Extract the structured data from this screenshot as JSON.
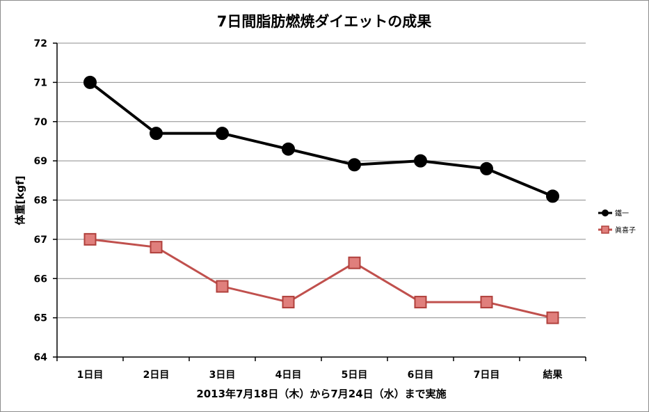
{
  "chart_data": {
    "type": "line",
    "title": "7日間脂肪燃焼ダイエットの成果",
    "xlabel": "2013年7月18日（木）から7月24日（水）まで実施",
    "ylabel": "体重[kgf]",
    "categories": [
      "1日目",
      "2日目",
      "3日目",
      "4日目",
      "5日目",
      "6日目",
      "7日目",
      "結果"
    ],
    "ylim": [
      64,
      72
    ],
    "yticks": [
      64,
      65,
      66,
      67,
      68,
      69,
      70,
      71,
      72
    ],
    "grid": true,
    "legend_position": "right",
    "series": [
      {
        "name": "鐵一",
        "values": [
          71.0,
          69.7,
          69.7,
          69.3,
          68.9,
          69.0,
          68.8,
          68.1
        ],
        "color": "#000000",
        "marker": "circle"
      },
      {
        "name": "眞喜子",
        "values": [
          67.0,
          66.8,
          65.8,
          65.4,
          66.4,
          65.4,
          65.4,
          65.0
        ],
        "color": "#c0504d",
        "marker": "square"
      }
    ]
  }
}
